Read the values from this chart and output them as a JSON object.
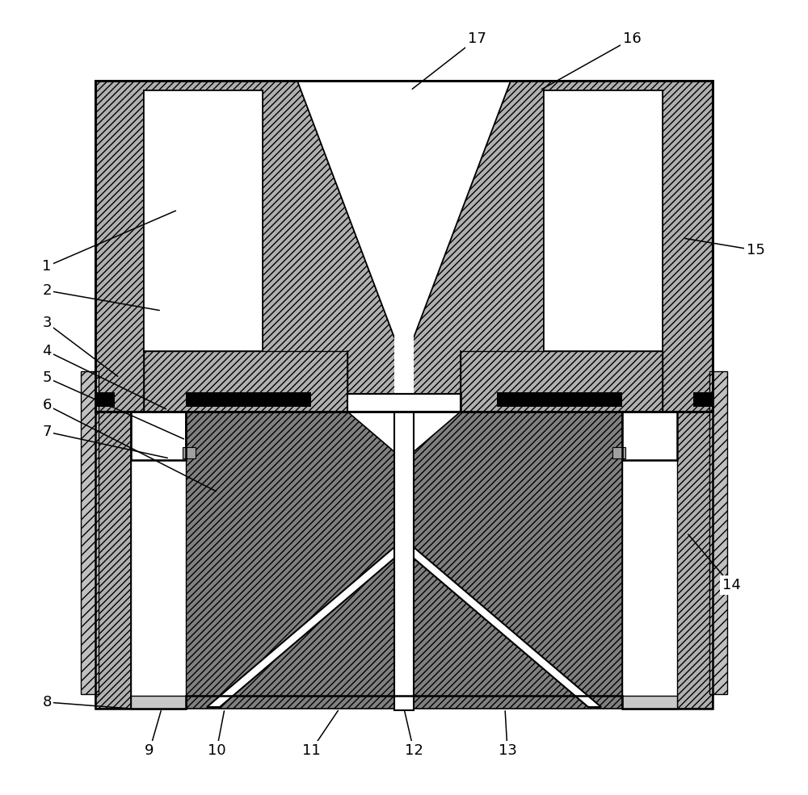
{
  "bg_color": "#ffffff",
  "hatch_color": "#b0b0b0",
  "dark_hatch_color": "#808080",
  "black": "#000000",
  "white": "#ffffff",
  "figsize": [
    10.0,
    9.85
  ],
  "dpi": 100,
  "label_data": [
    [
      "1",
      58,
      330,
      220,
      260
    ],
    [
      "2",
      58,
      360,
      200,
      385
    ],
    [
      "3",
      58,
      400,
      148,
      468
    ],
    [
      "4",
      58,
      435,
      208,
      508
    ],
    [
      "5",
      58,
      468,
      230,
      545
    ],
    [
      "6",
      58,
      502,
      270,
      610
    ],
    [
      "7",
      58,
      535,
      210,
      568
    ],
    [
      "8",
      58,
      870,
      162,
      878
    ],
    [
      "9",
      185,
      930,
      200,
      878
    ],
    [
      "10",
      268,
      930,
      278,
      878
    ],
    [
      "11",
      385,
      930,
      420,
      878
    ],
    [
      "12",
      512,
      930,
      500,
      878
    ],
    [
      "13",
      628,
      930,
      625,
      878
    ],
    [
      "14",
      905,
      725,
      850,
      660
    ],
    [
      "15",
      935,
      310,
      845,
      295
    ],
    [
      "16",
      782,
      48,
      668,
      112
    ],
    [
      "17",
      590,
      48,
      508,
      112
    ]
  ]
}
